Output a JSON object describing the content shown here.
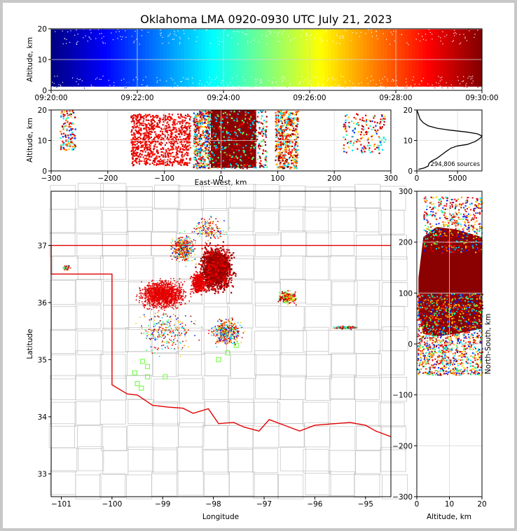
{
  "chart_data": [
    {
      "id": "time_height",
      "type": "scatter",
      "title": "Oklahoma LMA 0920-0930 UTC July 21, 2023",
      "ylabel": "Altitude, km",
      "xlim": [
        "09:20:00",
        "09:30:00"
      ],
      "ylim": [
        0,
        20
      ],
      "x_ticks": [
        "09:20:00",
        "09:22:00",
        "09:24:00",
        "09:26:00",
        "09:28:00",
        "09:30:00"
      ],
      "y_ticks": [
        "0",
        "10",
        "20"
      ],
      "colormap": "jet",
      "color_encodes": "time"
    },
    {
      "id": "east_west_altitude",
      "type": "scatter",
      "xlabel": "East-West, km",
      "ylabel": "Altitude, km",
      "xlim": [
        -300,
        300
      ],
      "ylim": [
        0,
        20
      ],
      "x_ticks": [
        "−300",
        "−200",
        "−100",
        "0",
        "100",
        "200",
        "300"
      ],
      "y_ticks": [
        "0",
        "10",
        "20"
      ],
      "clusters": [
        {
          "x_range": [
            -285,
            -255
          ],
          "y_range": [
            7,
            20
          ]
        },
        {
          "x_range": [
            -160,
            -50
          ],
          "y_range": [
            2,
            19
          ]
        },
        {
          "x_range": [
            -50,
            80
          ],
          "y_range": [
            1,
            20
          ]
        },
        {
          "x_range": [
            95,
            135
          ],
          "y_range": [
            1,
            20
          ]
        },
        {
          "x_range": [
            215,
            290
          ],
          "y_range": [
            6,
            19
          ]
        }
      ]
    },
    {
      "id": "altitude_histogram",
      "type": "line",
      "xlim": [
        0,
        8000
      ],
      "ylim": [
        0,
        20
      ],
      "x_ticks": [
        "0",
        "5000"
      ],
      "y_ticks": [
        "0",
        "10",
        "20"
      ],
      "annotation": "294,806 sources",
      "points": [
        [
          200,
          0.5
        ],
        [
          900,
          1
        ],
        [
          1400,
          1.6
        ],
        [
          1500,
          2.5
        ],
        [
          1800,
          3.2
        ],
        [
          2500,
          4.2
        ],
        [
          3000,
          5.2
        ],
        [
          3600,
          6.4
        ],
        [
          4200,
          7.5
        ],
        [
          5000,
          8.2
        ],
        [
          6200,
          8.7
        ],
        [
          7200,
          9.7
        ],
        [
          7800,
          10.8
        ],
        [
          8000,
          11.5
        ],
        [
          7400,
          12.2
        ],
        [
          6000,
          12.8
        ],
        [
          4000,
          13.4
        ],
        [
          2500,
          14
        ],
        [
          1400,
          14.8
        ],
        [
          800,
          15.8
        ],
        [
          400,
          17
        ],
        [
          150,
          19
        ],
        [
          0,
          20
        ]
      ]
    },
    {
      "id": "plan_view",
      "type": "scatter",
      "xlabel": "Longitude",
      "ylabel": "Latitude",
      "xlim": [
        -101.2,
        -94.5
      ],
      "ylim": [
        32.6,
        37.95
      ],
      "x_ticks": [
        "−101",
        "−100",
        "−99",
        "−98",
        "−97",
        "−96",
        "−95"
      ],
      "y_ticks": [
        "33",
        "34",
        "35",
        "36",
        "37"
      ],
      "stations": [
        [
          -99.4,
          34.97
        ],
        [
          -99.3,
          34.88
        ],
        [
          -99.55,
          34.77
        ],
        [
          -99.3,
          34.7
        ],
        [
          -99.5,
          34.58
        ],
        [
          -99.42,
          34.5
        ],
        [
          -98.95,
          34.7
        ],
        [
          -97.9,
          35
        ],
        [
          -97.72,
          35.12
        ],
        [
          -97.55,
          35.25
        ]
      ]
    },
    {
      "id": "north_south_altitude",
      "type": "scatter",
      "xlabel": "Altitude, km",
      "ylabel": "North-South, km",
      "xlim": [
        0,
        20
      ],
      "ylim": [
        -300,
        300
      ],
      "x_ticks": [
        "0",
        "10",
        "20"
      ],
      "y_ticks": [
        "−300",
        "−200",
        "−100",
        "0",
        "100",
        "200",
        "300"
      ]
    }
  ]
}
